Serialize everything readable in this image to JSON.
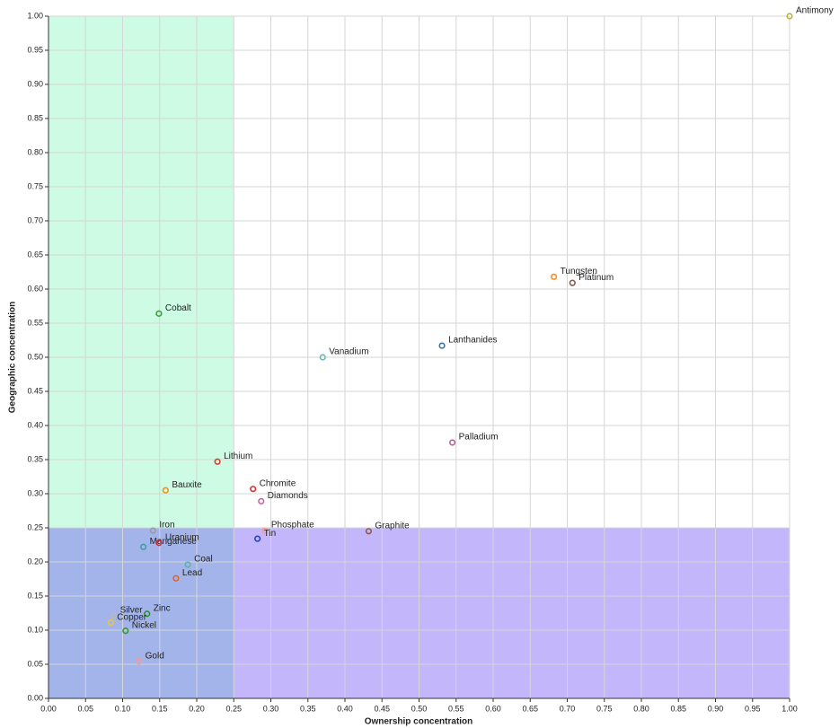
{
  "chart_data": {
    "type": "scatter",
    "x_label": "Ownership concentration",
    "y_label": "Geographic concentration",
    "xlim": [
      0,
      1
    ],
    "ylim": [
      0,
      1
    ],
    "grid": true,
    "regions": [
      {
        "x": [
          0,
          0.25
        ],
        "y": [
          0.25,
          1
        ],
        "color": "#cdfbe3"
      },
      {
        "x": [
          0,
          0.25
        ],
        "y": [
          0,
          0.25
        ],
        "color": "#a3b4ea"
      },
      {
        "x": [
          0.25,
          1
        ],
        "y": [
          0,
          0.25
        ],
        "color": "#c3b6fb"
      }
    ],
    "xticks": [
      {
        "value": 0,
        "label": "0.00"
      },
      0.05,
      {
        "value": 0.1,
        "label": "0.10"
      },
      0.15,
      {
        "value": 0.2,
        "label": "0.20"
      },
      0.25,
      {
        "value": 0.3,
        "label": "0.30"
      },
      0.35,
      {
        "value": 0.4,
        "label": "0.40"
      },
      0.45,
      {
        "value": 0.5,
        "label": "0.50"
      },
      0.55,
      {
        "value": 0.6,
        "label": "0.60"
      },
      0.65,
      {
        "value": 0.7,
        "label": "0.70"
      },
      0.75,
      {
        "value": 0.8,
        "label": "0.80"
      },
      0.85,
      {
        "value": 0.9,
        "label": "0.90"
      },
      0.95,
      {
        "value": 1,
        "label": "1.00"
      }
    ],
    "yticks": [
      {
        "value": 0,
        "label": "0.00"
      },
      0.05,
      {
        "value": 0.1,
        "label": "0.10"
      },
      0.15,
      {
        "value": 0.2,
        "label": "0.20"
      },
      0.25,
      {
        "value": 0.3,
        "label": "0.30"
      },
      0.35,
      {
        "value": 0.4,
        "label": "0.40"
      },
      0.45,
      {
        "value": 0.5,
        "label": "0.50"
      },
      0.55,
      {
        "value": 0.6,
        "label": "0.60"
      },
      0.65,
      {
        "value": 0.7,
        "label": "0.70"
      },
      0.75,
      {
        "value": 0.8,
        "label": "0.80"
      },
      0.85,
      {
        "value": 0.9,
        "label": "0.90"
      },
      0.95,
      {
        "value": 1,
        "label": "1.00"
      }
    ],
    "points": [
      {
        "name": "Antimony",
        "x": 1.0,
        "y": 1.0,
        "color": "#bcb23a"
      },
      {
        "name": "Tungsten",
        "x": 0.682,
        "y": 0.618,
        "color": "#f28e1c"
      },
      {
        "name": "Platinum",
        "x": 0.707,
        "y": 0.609,
        "color": "#8c564b"
      },
      {
        "name": "Cobalt",
        "x": 0.149,
        "y": 0.564,
        "color": "#3aa03a"
      },
      {
        "name": "Vanadium",
        "x": 0.37,
        "y": 0.5,
        "color": "#6ab7b2"
      },
      {
        "name": "Lanthanides",
        "x": 0.531,
        "y": 0.517,
        "color": "#3a6ea5"
      },
      {
        "name": "Palladium",
        "x": 0.545,
        "y": 0.375,
        "color": "#b0609e"
      },
      {
        "name": "Lithium",
        "x": 0.228,
        "y": 0.347,
        "color": "#d83b2b"
      },
      {
        "name": "Bauxite",
        "x": 0.158,
        "y": 0.305,
        "color": "#e8921c"
      },
      {
        "name": "Chromite",
        "x": 0.276,
        "y": 0.307,
        "color": "#d8302b"
      },
      {
        "name": "Diamonds",
        "x": 0.287,
        "y": 0.289,
        "color": "#c3659b"
      },
      {
        "name": "Phosphate",
        "x": 0.292,
        "y": 0.246,
        "color": "#f49a9a"
      },
      {
        "name": "Tin",
        "x": 0.282,
        "y": 0.234,
        "color": "#2540c8"
      },
      {
        "name": "Graphite",
        "x": 0.432,
        "y": 0.245,
        "color": "#8c5a46"
      },
      {
        "name": "Iron",
        "x": 0.141,
        "y": 0.246,
        "color": "#9a9a9a"
      },
      {
        "name": "Manganese",
        "x": 0.128,
        "y": 0.222,
        "color": "#3aa0a0"
      },
      {
        "name": "Uranium",
        "x": 0.149,
        "y": 0.228,
        "color": "#d62728"
      },
      {
        "name": "Coal",
        "x": 0.188,
        "y": 0.196,
        "color": "#5ab4ac"
      },
      {
        "name": "Lead",
        "x": 0.172,
        "y": 0.176,
        "color": "#e0602a"
      },
      {
        "name": "Zinc",
        "x": 0.133,
        "y": 0.124,
        "color": "#2c8f2c"
      },
      {
        "name": "Silver",
        "x": 0.088,
        "y": 0.121,
        "color": "#b8b8b8"
      },
      {
        "name": "Copper",
        "x": 0.084,
        "y": 0.111,
        "color": "#e5c54a"
      },
      {
        "name": "Nickel",
        "x": 0.104,
        "y": 0.099,
        "color": "#2c9a2c"
      },
      {
        "name": "Gold",
        "x": 0.122,
        "y": 0.054,
        "color": "#f49a9a"
      }
    ]
  }
}
